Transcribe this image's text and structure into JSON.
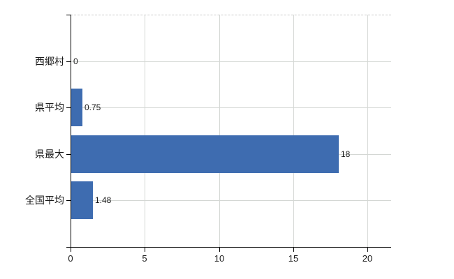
{
  "chart_data": {
    "type": "bar",
    "orientation": "horizontal",
    "title": "",
    "xlabel": "",
    "ylabel": "",
    "categories": [
      "西郷村",
      "県平均",
      "県最大",
      "全国平均"
    ],
    "values": [
      0,
      0.75,
      18,
      1.48
    ],
    "value_labels": [
      "0",
      "0.75",
      "18",
      "1.48"
    ],
    "xlim": [
      0,
      21.6
    ],
    "xticks": [
      0,
      5,
      10,
      15,
      20
    ],
    "xtick_labels": [
      "0",
      "5",
      "10",
      "15",
      "20"
    ],
    "grid": true,
    "legend": false,
    "colors": {
      "bar": "#3e6cb0",
      "axis": "#000000",
      "gridline": "#d4d7d4",
      "top_border": "#c9c9c9",
      "text": "#1a1a1a"
    }
  }
}
